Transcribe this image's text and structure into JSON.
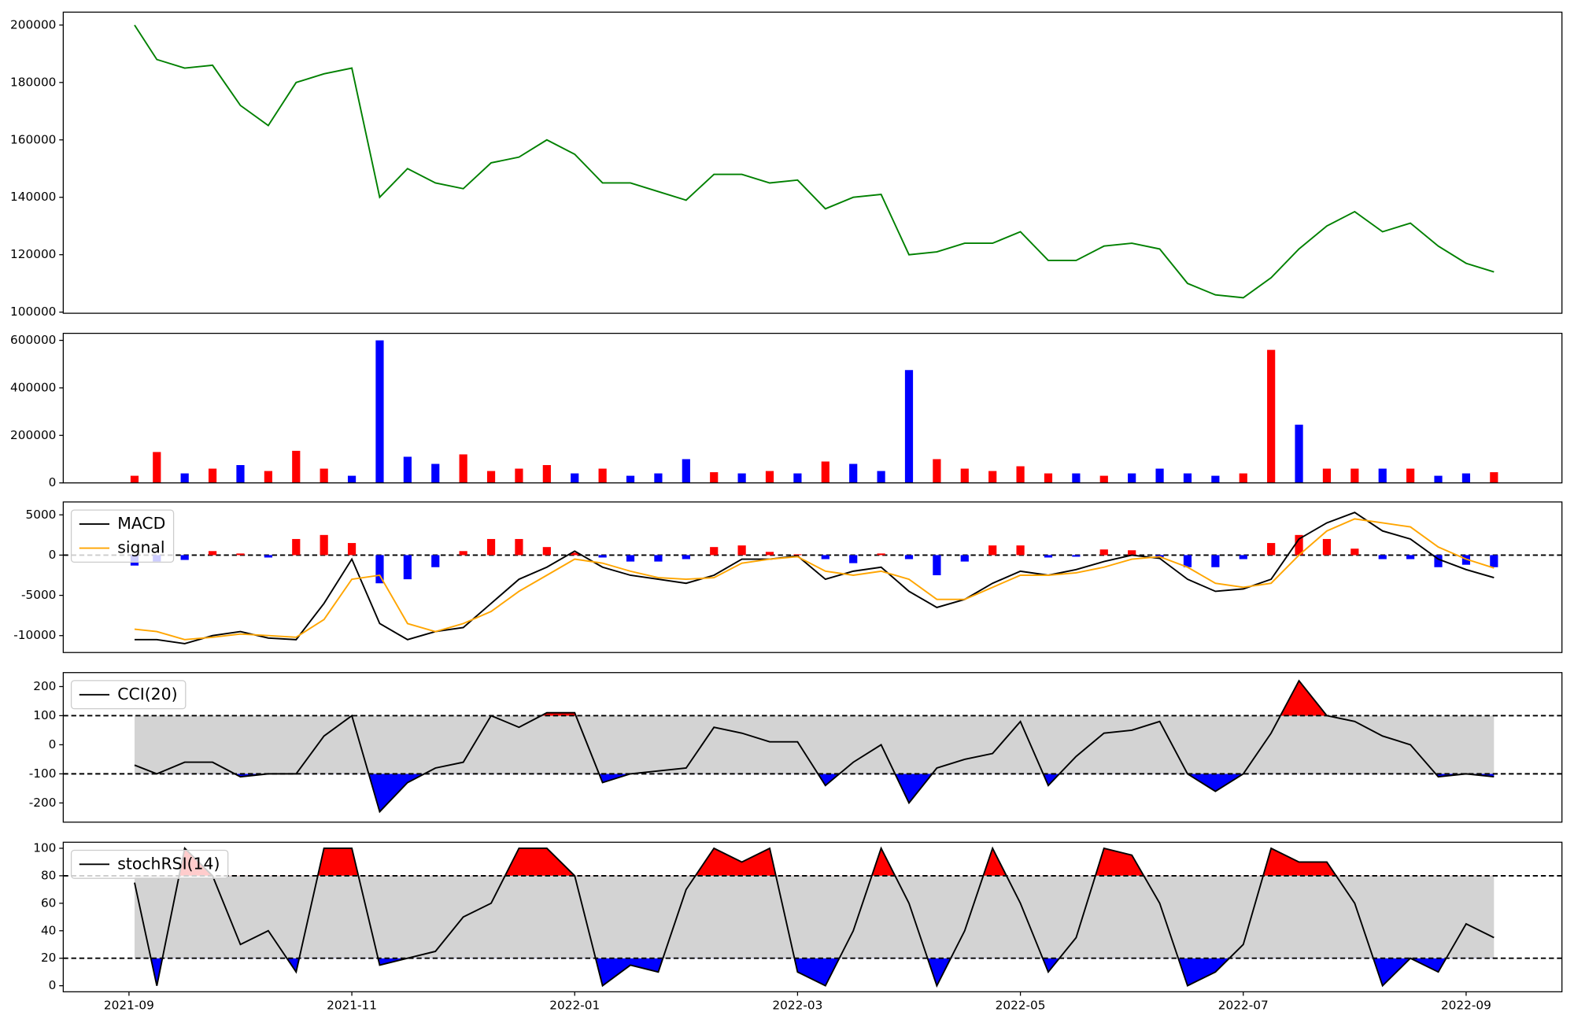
{
  "chart_data": [
    {
      "type": "line",
      "x": [
        0.05,
        0.25,
        0.5,
        0.75,
        1,
        1.25,
        1.5,
        1.75,
        2,
        2.25,
        2.5,
        2.75,
        3,
        3.25,
        3.5,
        3.75,
        4,
        4.25,
        4.5,
        4.75,
        5,
        5.25,
        5.5,
        5.75,
        6,
        6.25,
        6.5,
        6.75,
        7,
        7.25,
        7.5,
        7.75,
        8,
        8.25,
        8.5,
        8.75,
        9,
        9.25,
        9.5,
        9.75,
        10,
        10.25,
        10.5,
        10.75,
        11,
        11.25,
        11.5,
        11.75,
        12,
        12.25
      ],
      "xlim": [
        -0.59,
        12.86
      ],
      "series": [
        {
          "color": "#008000",
          "values": [
            200000,
            188000,
            185000,
            186000,
            172000,
            165000,
            180000,
            183000,
            185000,
            140000,
            150000,
            145000,
            143000,
            152000,
            154000,
            160000,
            155000,
            145000,
            145000,
            142000,
            139000,
            148000,
            148000,
            145000,
            146000,
            136000,
            140000,
            141000,
            120000,
            121000,
            124000,
            124000,
            128000,
            118000,
            118000,
            123000,
            124000,
            122000,
            110000,
            106000,
            105000,
            112000,
            122000,
            130000,
            135000,
            128000,
            131000,
            123000,
            117000,
            114000
          ]
        }
      ],
      "ylim": [
        99600,
        204500
      ],
      "yticks": [
        100000,
        120000,
        140000,
        160000,
        180000,
        200000
      ]
    },
    {
      "type": "bar",
      "x": [
        0.05,
        0.25,
        0.5,
        0.75,
        1,
        1.25,
        1.5,
        1.75,
        2,
        2.25,
        2.5,
        2.75,
        3,
        3.25,
        3.5,
        3.75,
        4,
        4.25,
        4.5,
        4.75,
        5,
        5.25,
        5.5,
        5.75,
        6,
        6.25,
        6.5,
        6.75,
        7,
        7.25,
        7.5,
        7.75,
        8,
        8.25,
        8.5,
        8.75,
        9,
        9.25,
        9.5,
        9.75,
        10,
        10.25,
        10.5,
        10.75,
        11,
        11.25,
        11.5,
        11.75,
        12,
        12.25
      ],
      "xlim": [
        -0.59,
        12.86
      ],
      "values": [
        30000,
        130000,
        40000,
        60000,
        75000,
        50000,
        135000,
        60000,
        30000,
        600000,
        110000,
        80000,
        120000,
        50000,
        60000,
        75000,
        40000,
        60000,
        30000,
        40000,
        100000,
        45000,
        40000,
        50000,
        40000,
        90000,
        80000,
        50000,
        475000,
        100000,
        60000,
        50000,
        70000,
        40000,
        40000,
        30000,
        40000,
        60000,
        40000,
        30000,
        40000,
        560000,
        245000,
        60000,
        60000,
        60000,
        60000,
        30000,
        40000,
        45000
      ],
      "colors": [
        "#ff0000",
        "#ff0000",
        "#0000ff",
        "#ff0000",
        "#0000ff",
        "#ff0000",
        "#ff0000",
        "#ff0000",
        "#0000ff",
        "#0000ff",
        "#0000ff",
        "#0000ff",
        "#ff0000",
        "#ff0000",
        "#ff0000",
        "#ff0000",
        "#0000ff",
        "#ff0000",
        "#0000ff",
        "#0000ff",
        "#0000ff",
        "#ff0000",
        "#0000ff",
        "#ff0000",
        "#0000ff",
        "#ff0000",
        "#0000ff",
        "#0000ff",
        "#0000ff",
        "#ff0000",
        "#ff0000",
        "#ff0000",
        "#ff0000",
        "#ff0000",
        "#0000ff",
        "#ff0000",
        "#0000ff",
        "#0000ff",
        "#0000ff",
        "#0000ff",
        "#ff0000",
        "#ff0000",
        "#0000ff",
        "#ff0000",
        "#ff0000",
        "#0000ff",
        "#ff0000",
        "#0000ff",
        "#0000ff",
        "#ff0000"
      ],
      "ylim": [
        0,
        629600
      ],
      "yticks": [
        0,
        200000,
        400000,
        600000
      ]
    },
    {
      "type": "line",
      "x": [
        0.05,
        0.25,
        0.5,
        0.75,
        1,
        1.25,
        1.5,
        1.75,
        2,
        2.25,
        2.5,
        2.75,
        3,
        3.25,
        3.5,
        3.75,
        4,
        4.25,
        4.5,
        4.75,
        5,
        5.25,
        5.5,
        5.75,
        6,
        6.25,
        6.5,
        6.75,
        7,
        7.25,
        7.5,
        7.75,
        8,
        8.25,
        8.5,
        8.75,
        9,
        9.25,
        9.5,
        9.75,
        10,
        10.25,
        10.5,
        10.75,
        11,
        11.25,
        11.5,
        11.75,
        12,
        12.25
      ],
      "xlim": [
        -0.59,
        12.86
      ],
      "histogram": {
        "up_color": "#ff0000",
        "down_color": "#0000ff",
        "values": [
          -1300,
          -800,
          -600,
          500,
          200,
          -300,
          2000,
          2500,
          1500,
          -3500,
          -3000,
          -1500,
          500,
          2000,
          2000,
          1000,
          300,
          -300,
          -800,
          -800,
          -500,
          1000,
          1200,
          400,
          100,
          -500,
          -1000,
          200,
          -500,
          -2500,
          -800,
          1200,
          1200,
          -300,
          -200,
          700,
          600,
          -300,
          -1500,
          -1500,
          -500,
          1500,
          2500,
          2000,
          800,
          -500,
          -500,
          -1500,
          -1200,
          -1500
        ]
      },
      "series": [
        {
          "name": "MACD",
          "color": "#000000",
          "values": [
            -10500,
            -10500,
            -11000,
            -10000,
            -9500,
            -10300,
            -10500,
            -6000,
            -500,
            -8500,
            -10500,
            -9500,
            -9000,
            -6000,
            -3000,
            -1500,
            500,
            -1500,
            -2500,
            -3000,
            -3500,
            -2500,
            -500,
            -500,
            -100,
            -3000,
            -2000,
            -1500,
            -4500,
            -6500,
            -5500,
            -3500,
            -2000,
            -2500,
            -1800,
            -800,
            0,
            -400,
            -3000,
            -4500,
            -4200,
            -3000,
            2000,
            4000,
            5300,
            3000,
            2000,
            -500,
            -1800,
            -2800
          ]
        },
        {
          "name": "signal",
          "color": "#ffa500",
          "values": [
            -9200,
            -9500,
            -10500,
            -10200,
            -9800,
            -10000,
            -10200,
            -8000,
            -3000,
            -2500,
            -8500,
            -9500,
            -8500,
            -7000,
            -4500,
            -2500,
            -500,
            -1000,
            -2000,
            -2800,
            -3000,
            -2800,
            -1000,
            -500,
            -200,
            -2000,
            -2500,
            -2000,
            -3000,
            -5500,
            -5500,
            -4000,
            -2500,
            -2500,
            -2200,
            -1500,
            -500,
            -200,
            -1500,
            -3500,
            -4000,
            -3500,
            0,
            3000,
            4500,
            4000,
            3500,
            1000,
            -500,
            -1600
          ]
        }
      ],
      "levels": [
        0
      ],
      "ylim": [
        -12100,
        6600
      ],
      "yticks": [
        -10000,
        -5000,
        0,
        5000
      ],
      "legend": "upper left"
    },
    {
      "type": "line",
      "x": [
        0.05,
        0.25,
        0.5,
        0.75,
        1,
        1.25,
        1.5,
        1.75,
        2,
        2.25,
        2.5,
        2.75,
        3,
        3.25,
        3.5,
        3.75,
        4,
        4.25,
        4.5,
        4.75,
        5,
        5.25,
        5.5,
        5.75,
        6,
        6.25,
        6.5,
        6.75,
        7,
        7.25,
        7.5,
        7.75,
        8,
        8.25,
        8.5,
        8.75,
        9,
        9.25,
        9.5,
        9.75,
        10,
        10.25,
        10.5,
        10.75,
        11,
        11.25,
        11.5,
        11.75,
        12,
        12.25
      ],
      "xlim": [
        -0.59,
        12.86
      ],
      "series": [
        {
          "name": "CCI(20)",
          "color": "#000000",
          "values": [
            -70,
            -100,
            -60,
            -60,
            -110,
            -100,
            -100,
            30,
            100,
            -230,
            -130,
            -80,
            -60,
            100,
            60,
            110,
            110,
            -130,
            -100,
            -90,
            -80,
            60,
            40,
            10,
            10,
            -140,
            -60,
            0,
            -200,
            -80,
            -50,
            -30,
            80,
            -140,
            -40,
            40,
            50,
            80,
            -100,
            -160,
            -100,
            40,
            220,
            100,
            80,
            30,
            0,
            -110,
            -100,
            -110
          ]
        }
      ],
      "levels": [
        100,
        -100
      ],
      "band_color": "#d3d3d3",
      "upper_fill": "#ff0000",
      "lower_fill": "#0000ff",
      "ylim": [
        -266,
        248
      ],
      "yticks": [
        -200,
        -100,
        0,
        100,
        200
      ],
      "legend": "upper left"
    },
    {
      "type": "line",
      "x": [
        0.05,
        0.25,
        0.5,
        0.75,
        1,
        1.25,
        1.5,
        1.75,
        2,
        2.25,
        2.5,
        2.75,
        3,
        3.25,
        3.5,
        3.75,
        4,
        4.25,
        4.5,
        4.75,
        5,
        5.25,
        5.5,
        5.75,
        6,
        6.25,
        6.5,
        6.75,
        7,
        7.25,
        7.5,
        7.75,
        8,
        8.25,
        8.5,
        8.75,
        9,
        9.25,
        9.5,
        9.75,
        10,
        10.25,
        10.5,
        10.75,
        11,
        11.25,
        11.5,
        11.75,
        12,
        12.25
      ],
      "xlim": [
        -0.59,
        12.86
      ],
      "xticks": [
        {
          "value": 0,
          "label": "2021-09"
        },
        {
          "value": 2,
          "label": "2021-11"
        },
        {
          "value": 4,
          "label": "2022-01"
        },
        {
          "value": 6,
          "label": "2022-03"
        },
        {
          "value": 8,
          "label": "2022-05"
        },
        {
          "value": 10,
          "label": "2022-07"
        },
        {
          "value": 12,
          "label": "2022-09"
        }
      ],
      "series": [
        {
          "name": "stochRSI(14)",
          "color": "#000000",
          "values": [
            75,
            0,
            100,
            80,
            30,
            40,
            10,
            100,
            100,
            15,
            20,
            25,
            50,
            60,
            100,
            100,
            80,
            0,
            15,
            10,
            70,
            100,
            90,
            100,
            10,
            0,
            40,
            100,
            60,
            0,
            40,
            100,
            60,
            10,
            35,
            100,
            95,
            60,
            0,
            10,
            30,
            100,
            90,
            90,
            60,
            0,
            20,
            10,
            45,
            35
          ]
        }
      ],
      "levels": [
        80,
        20
      ],
      "band_color": "#d3d3d3",
      "upper_fill": "#ff0000",
      "lower_fill": "#0000ff",
      "ylim": [
        -4.4,
        104.4
      ],
      "yticks": [
        0,
        20,
        40,
        60,
        80,
        100
      ],
      "legend": "upper left"
    }
  ]
}
